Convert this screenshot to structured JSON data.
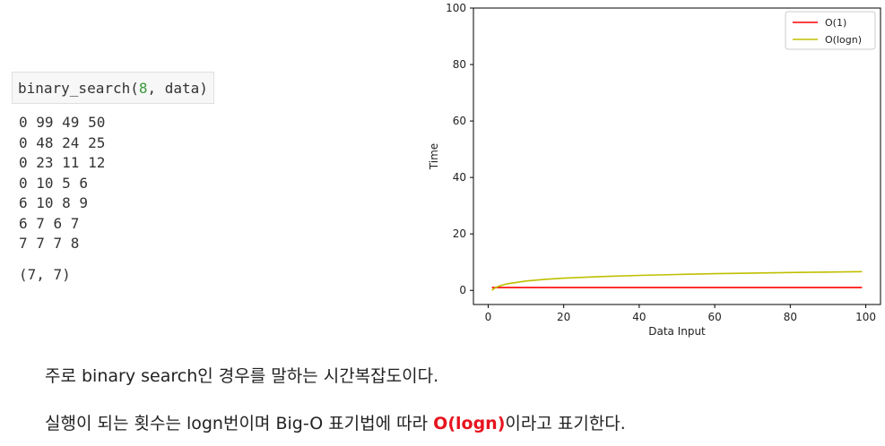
{
  "code": {
    "fn": "binary_search(",
    "arg": "8",
    "rest": ", data)"
  },
  "output": {
    "lines": [
      "0 99 49 50",
      "0 48 24 25",
      "0 23 11 12",
      "0 10 5 6",
      "6 10 8 9",
      "6 7 6 7",
      "7 7 7 8"
    ],
    "result": "(7, 7)"
  },
  "chart_data": {
    "type": "line",
    "xlabel": "Data Input",
    "ylabel": "Time",
    "xlim": [
      -3.9,
      103.9
    ],
    "ylim": [
      -5,
      100
    ],
    "xticks": [
      0,
      20,
      40,
      60,
      80,
      100
    ],
    "yticks": [
      0,
      20,
      40,
      60,
      80,
      100
    ],
    "legend_position": "top-right",
    "series": [
      {
        "name": "O(1)",
        "color": "#ff0000",
        "x": [
          1,
          99
        ],
        "y": [
          1,
          1
        ]
      },
      {
        "name": "O(logn)",
        "color": "#bfbf00",
        "x": [
          1,
          2,
          3,
          5,
          10,
          15,
          20,
          30,
          40,
          50,
          60,
          70,
          80,
          90,
          99
        ],
        "y": [
          0,
          1,
          1.58,
          2.32,
          3.32,
          3.91,
          4.32,
          4.91,
          5.32,
          5.64,
          5.91,
          6.13,
          6.32,
          6.49,
          6.63
        ]
      }
    ]
  },
  "text": {
    "p1": "주로 binary search인 경우를 말하는 시간복잡도이다.",
    "p2_before": "실행이 되는 횟수는 logn번이며 Big-O 표기법에 따라 ",
    "p2_highlight": "O(logn)",
    "p2_after": "이라고 표기한다."
  }
}
